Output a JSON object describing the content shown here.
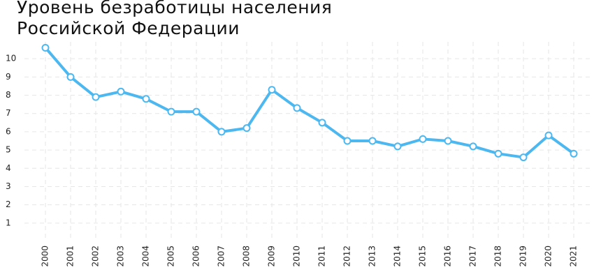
{
  "chart_data": {
    "type": "line",
    "title": "Уровень безработицы населения Российской Федерации",
    "categories": [
      "2000",
      "2001",
      "2002",
      "2003",
      "2004",
      "2005",
      "2006",
      "2007",
      "2008",
      "2009",
      "2010",
      "2011",
      "2012",
      "2013",
      "2014",
      "2015",
      "2016",
      "2017",
      "2018",
      "2019",
      "2020",
      "2021"
    ],
    "values": [
      10.6,
      9.0,
      7.9,
      8.2,
      7.8,
      7.1,
      7.1,
      6.0,
      6.2,
      8.3,
      7.3,
      6.5,
      5.5,
      5.5,
      5.2,
      5.6,
      5.5,
      5.2,
      4.8,
      4.6,
      5.8,
      4.8
    ],
    "color": "#4db8f0",
    "ylim": [
      0,
      11
    ],
    "yticks": [
      1,
      2,
      3,
      4,
      5,
      6,
      7,
      8,
      9,
      10
    ],
    "grid": true
  }
}
